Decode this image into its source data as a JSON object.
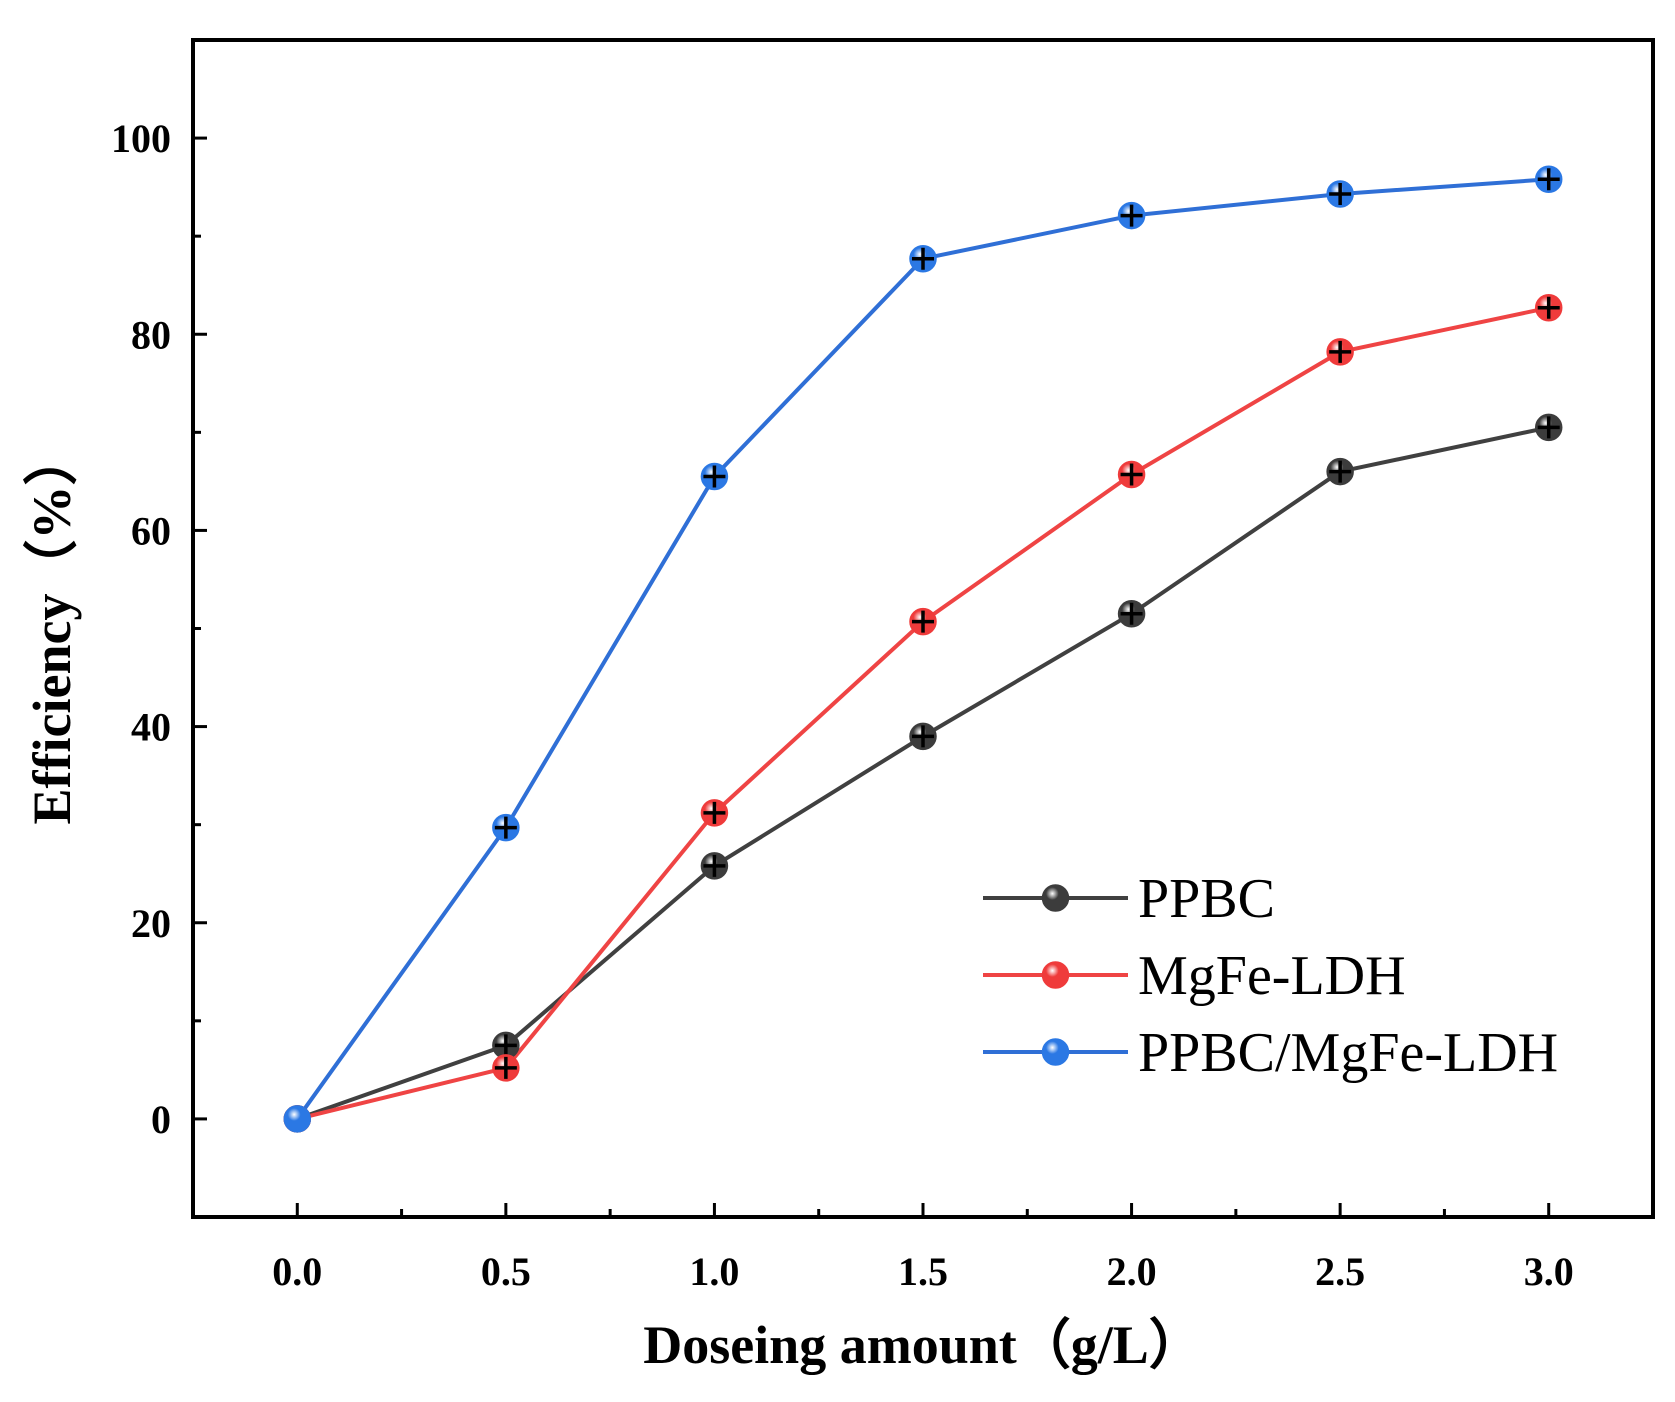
{
  "chart_data": {
    "type": "line",
    "title": "",
    "xlabel": "Doseing amount（g/L）",
    "ylabel": "Efficiency（%）",
    "xlim": [
      -0.25,
      3.25
    ],
    "ylim": [
      -10,
      110
    ],
    "x_ticks": [
      "0.0",
      "0.5",
      "1.0",
      "1.5",
      "2.0",
      "2.5",
      "3.0"
    ],
    "y_ticks": [
      "0",
      "20",
      "40",
      "60",
      "80",
      "100"
    ],
    "x": [
      0.0,
      0.5,
      1.0,
      1.5,
      2.0,
      2.5,
      3.0
    ],
    "legend_position": "bottom-right",
    "series": [
      {
        "name": "PPBC",
        "color": "#404040",
        "marker_color": "#3c3c3c",
        "values": [
          0,
          7.5,
          25.8,
          39,
          51.5,
          66,
          70.5
        ]
      },
      {
        "name": "MgFe-LDH",
        "color": "#ef4444",
        "marker_color": "#ef3b3b",
        "values": [
          0,
          5.2,
          31.2,
          50.7,
          65.7,
          78.2,
          82.7
        ]
      },
      {
        "name": "PPBC/MgFe-LDH",
        "color": "#2f6fd6",
        "marker_color": "#2b78e4",
        "values": [
          0,
          29.7,
          65.5,
          87.7,
          92.1,
          94.3,
          95.8
        ]
      }
    ]
  }
}
